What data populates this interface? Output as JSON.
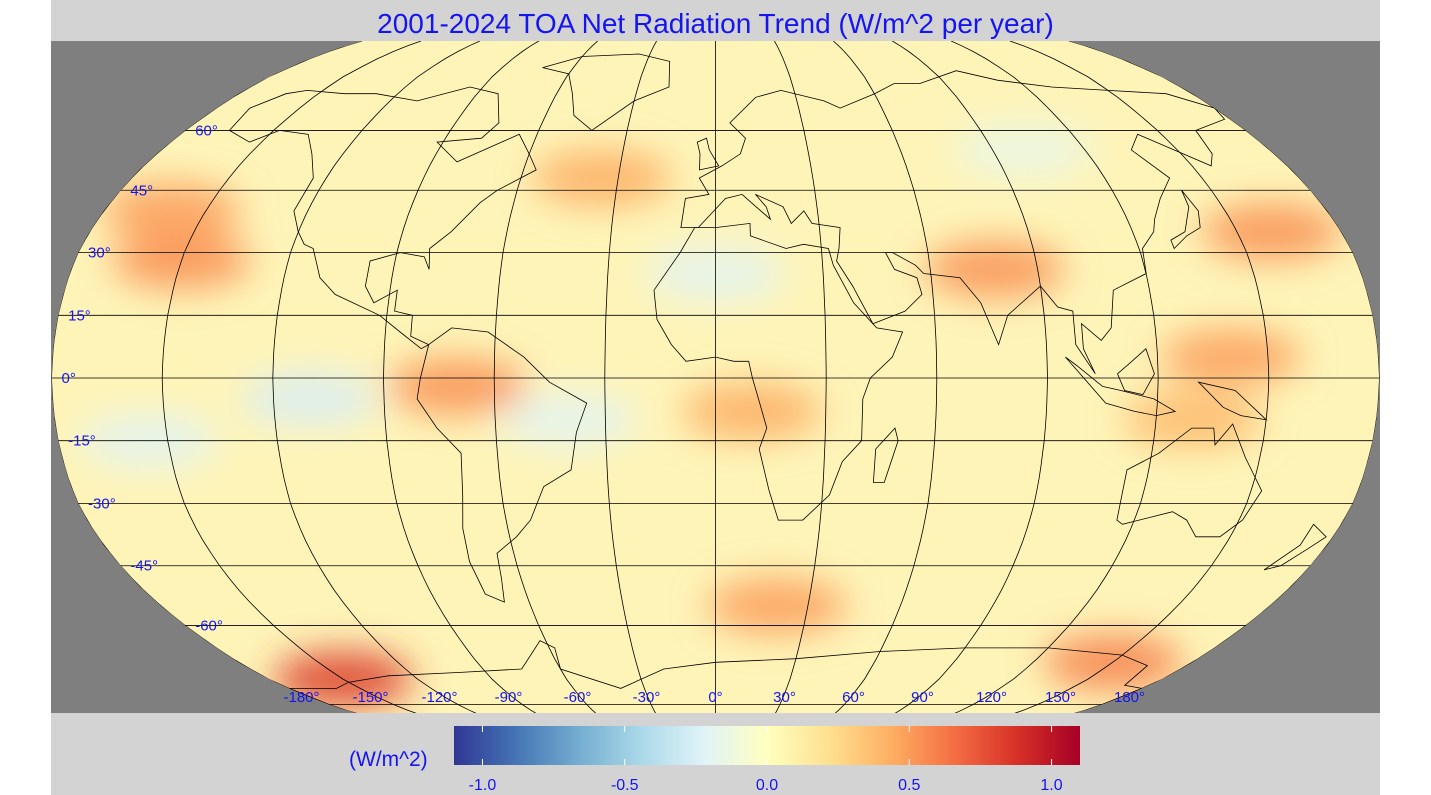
{
  "title": "2001-2024 TOA Net Radiation Trend (W/m^2 per year)",
  "projection": "robinson",
  "panel_background": "#7f7f7f",
  "figure_background": "#d3d3d3",
  "label_color": "#1515f0",
  "latitude_labels": [
    "60°",
    "45°",
    "30°",
    "15°",
    "0°",
    "-15°",
    "-30°",
    "-45°",
    "-60°"
  ],
  "latitude_values": [
    60,
    45,
    30,
    15,
    0,
    -15,
    -30,
    -45,
    -60
  ],
  "longitude_labels": [
    "-180°",
    "-150°",
    "-120°",
    "-90°",
    "-60°",
    "-30°",
    "0°",
    "30°",
    "60°",
    "90°",
    "120°",
    "150°",
    "180°"
  ],
  "longitude_values": [
    -180,
    -150,
    -120,
    -90,
    -60,
    -30,
    0,
    30,
    60,
    90,
    120,
    150,
    180
  ],
  "colorbar": {
    "unit_label": "(W/m^2)",
    "min": -1.1,
    "max": 1.1,
    "ticks": [
      -1.0,
      -0.5,
      0.0,
      0.5,
      1.0
    ],
    "tick_labels": [
      "-1.0",
      "-0.5",
      "0.0",
      "0.5",
      "1.0"
    ],
    "colors": [
      "#313695",
      "#4575b4",
      "#74add1",
      "#abd9e9",
      "#e0f3f8",
      "#ffffbf",
      "#fee090",
      "#fdae61",
      "#f46d43",
      "#d73027",
      "#a50026"
    ]
  },
  "anomaly_regions": [
    {
      "lon": -150,
      "lat": 28,
      "value": 0.55
    },
    {
      "lon": -160,
      "lat": 40,
      "value": 0.5
    },
    {
      "lon": -35,
      "lat": 48,
      "value": 0.45
    },
    {
      "lon": -70,
      "lat": -2,
      "value": 0.55
    },
    {
      "lon": 10,
      "lat": -8,
      "value": 0.45
    },
    {
      "lon": 78,
      "lat": 26,
      "value": 0.55
    },
    {
      "lon": 160,
      "lat": 35,
      "value": 0.55
    },
    {
      "lon": 140,
      "lat": 5,
      "value": 0.5
    },
    {
      "lon": 130,
      "lat": -10,
      "value": 0.4
    },
    {
      "lon": 20,
      "lat": -55,
      "value": 0.5
    },
    {
      "lon": -150,
      "lat": -75,
      "value": 0.85
    },
    {
      "lon": 150,
      "lat": -70,
      "value": 0.6
    },
    {
      "lon": -110,
      "lat": -5,
      "value": -0.25
    },
    {
      "lon": 0,
      "lat": 25,
      "value": -0.2
    },
    {
      "lon": -40,
      "lat": -10,
      "value": -0.2
    },
    {
      "lon": -155,
      "lat": -15,
      "value": -0.2
    },
    {
      "lon": 100,
      "lat": 55,
      "value": -0.15
    }
  ]
}
